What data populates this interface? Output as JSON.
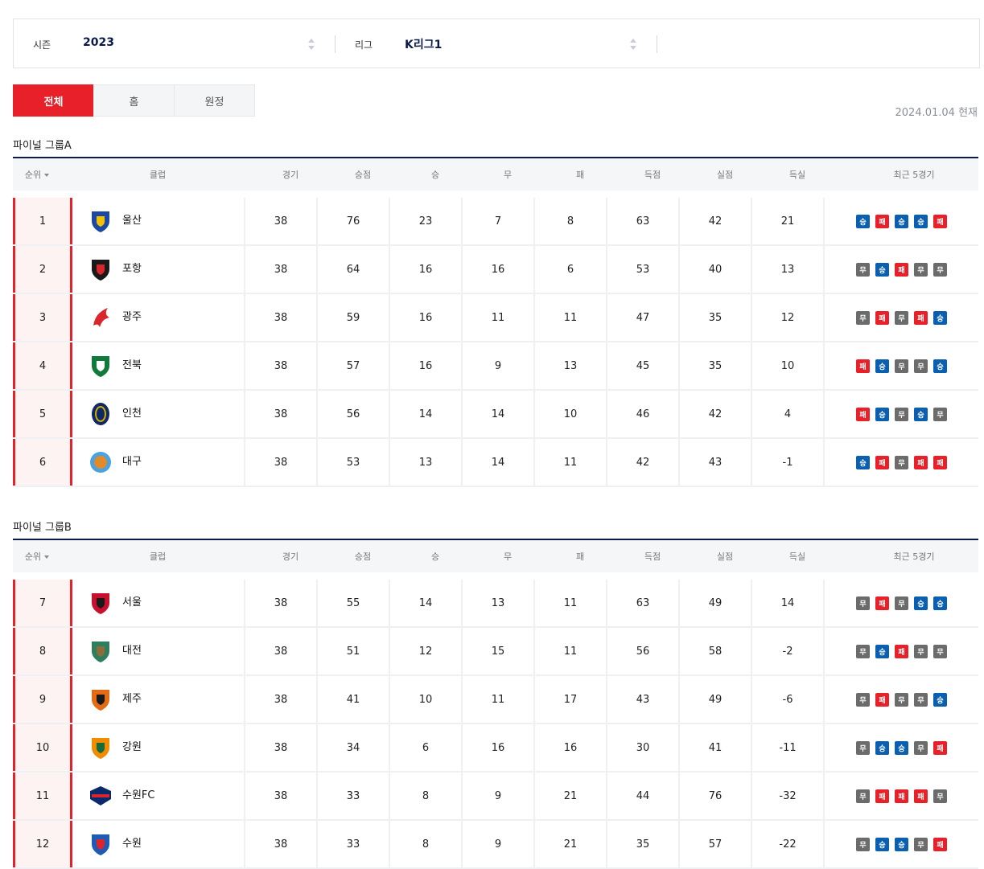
{
  "filters": {
    "season": {
      "label": "시즌",
      "value": "2023"
    },
    "league": {
      "label": "리그",
      "value": "K리그1"
    }
  },
  "tabs": [
    {
      "label": "전체",
      "active": true
    },
    {
      "label": "홈",
      "active": false
    },
    {
      "label": "원정",
      "active": false
    }
  ],
  "as_of": "2024.01.04 현재",
  "columns": {
    "rank": "순위",
    "club": "클럽",
    "played": "경기",
    "points": "승점",
    "wins": "승",
    "draws": "무",
    "losses": "패",
    "goals_for": "득점",
    "goals_against": "실점",
    "goal_diff": "득실",
    "recent": "최근 5경기"
  },
  "result_labels": {
    "W": "승",
    "L": "패",
    "D": "무"
  },
  "colors": {
    "accent": "#e8202a",
    "navy": "#0b1a4a",
    "win": "#0b5fb0",
    "loss": "#e8202a",
    "draw": "#6b6b6b"
  },
  "groups": [
    {
      "title": "파이널 그룹A",
      "rows": [
        {
          "rank": "1",
          "club": "울산",
          "logo": "ulsan-logo",
          "played": "38",
          "points": "76",
          "wins": "23",
          "draws": "7",
          "losses": "8",
          "gf": "63",
          "ga": "42",
          "gd": "21",
          "recent": [
            "W",
            "L",
            "W",
            "W",
            "L"
          ]
        },
        {
          "rank": "2",
          "club": "포항",
          "logo": "pohang-logo",
          "played": "38",
          "points": "64",
          "wins": "16",
          "draws": "16",
          "losses": "6",
          "gf": "53",
          "ga": "40",
          "gd": "13",
          "recent": [
            "D",
            "W",
            "L",
            "D",
            "D"
          ]
        },
        {
          "rank": "3",
          "club": "광주",
          "logo": "gwangju-logo",
          "played": "38",
          "points": "59",
          "wins": "16",
          "draws": "11",
          "losses": "11",
          "gf": "47",
          "ga": "35",
          "gd": "12",
          "recent": [
            "D",
            "L",
            "D",
            "L",
            "W"
          ]
        },
        {
          "rank": "4",
          "club": "전북",
          "logo": "jeonbuk-logo",
          "played": "38",
          "points": "57",
          "wins": "16",
          "draws": "9",
          "losses": "13",
          "gf": "45",
          "ga": "35",
          "gd": "10",
          "recent": [
            "L",
            "W",
            "D",
            "D",
            "W"
          ]
        },
        {
          "rank": "5",
          "club": "인천",
          "logo": "incheon-logo",
          "played": "38",
          "points": "56",
          "wins": "14",
          "draws": "14",
          "losses": "10",
          "gf": "46",
          "ga": "42",
          "gd": "4",
          "recent": [
            "L",
            "W",
            "D",
            "W",
            "D"
          ]
        },
        {
          "rank": "6",
          "club": "대구",
          "logo": "daegu-logo",
          "played": "38",
          "points": "53",
          "wins": "13",
          "draws": "14",
          "losses": "11",
          "gf": "42",
          "ga": "43",
          "gd": "-1",
          "recent": [
            "W",
            "L",
            "D",
            "L",
            "L"
          ]
        }
      ]
    },
    {
      "title": "파이널 그룹B",
      "rows": [
        {
          "rank": "7",
          "club": "서울",
          "logo": "seoul-logo",
          "played": "38",
          "points": "55",
          "wins": "14",
          "draws": "13",
          "losses": "11",
          "gf": "63",
          "ga": "49",
          "gd": "14",
          "recent": [
            "D",
            "L",
            "D",
            "W",
            "W"
          ]
        },
        {
          "rank": "8",
          "club": "대전",
          "logo": "daejeon-logo",
          "played": "38",
          "points": "51",
          "wins": "12",
          "draws": "15",
          "losses": "11",
          "gf": "56",
          "ga": "58",
          "gd": "-2",
          "recent": [
            "D",
            "W",
            "L",
            "D",
            "D"
          ]
        },
        {
          "rank": "9",
          "club": "제주",
          "logo": "jeju-logo",
          "played": "38",
          "points": "41",
          "wins": "10",
          "draws": "11",
          "losses": "17",
          "gf": "43",
          "ga": "49",
          "gd": "-6",
          "recent": [
            "D",
            "L",
            "D",
            "D",
            "W"
          ]
        },
        {
          "rank": "10",
          "club": "강원",
          "logo": "gangwon-logo",
          "played": "38",
          "points": "34",
          "wins": "6",
          "draws": "16",
          "losses": "16",
          "gf": "30",
          "ga": "41",
          "gd": "-11",
          "recent": [
            "D",
            "W",
            "W",
            "D",
            "L"
          ]
        },
        {
          "rank": "11",
          "club": "수원FC",
          "logo": "suwonfc-logo",
          "played": "38",
          "points": "33",
          "wins": "8",
          "draws": "9",
          "losses": "21",
          "gf": "44",
          "ga": "76",
          "gd": "-32",
          "recent": [
            "D",
            "L",
            "L",
            "L",
            "D"
          ]
        },
        {
          "rank": "12",
          "club": "수원",
          "logo": "suwon-logo",
          "played": "38",
          "points": "33",
          "wins": "8",
          "draws": "9",
          "losses": "21",
          "gf": "35",
          "ga": "57",
          "gd": "-22",
          "recent": [
            "D",
            "W",
            "W",
            "D",
            "L"
          ]
        }
      ]
    }
  ]
}
